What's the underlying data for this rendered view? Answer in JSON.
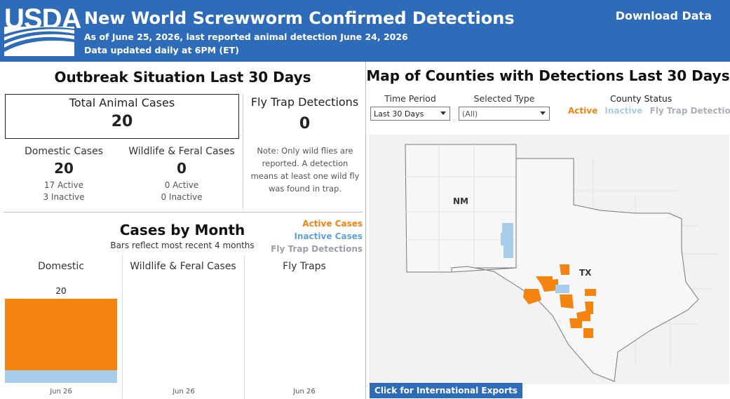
{
  "header": {
    "logo_text": "USDA",
    "title": "New World Screwworm Confirmed Detections",
    "subtitle_1": "As of June 25, 2026, last reported animal detection June 24, 2026",
    "subtitle_2": "Data updated daily at 6PM (ET)",
    "download_label": "Download Data"
  },
  "outbreak": {
    "title": "Outbreak Situation Last 30 Days",
    "total_label": "Total Animal Cases",
    "total_value": "20",
    "domestic": {
      "label": "Domestic Cases",
      "value": "20",
      "active": "17 Active",
      "inactive": "3 Inactive"
    },
    "wildlife": {
      "label": "Wildlife & Feral Cases",
      "value": "0",
      "active": "0 Active",
      "inactive": "0 Inactive"
    },
    "fly": {
      "label": "Fly Trap Detections",
      "value": "0",
      "note": "Note: Only wild flies are reported. A detection means at least one wild fly was found in trap."
    }
  },
  "cases_by_month": {
    "title": "Cases by Month",
    "note": "Bars reflect most recent 4 months",
    "legend": [
      "Active Cases",
      "Inactive Cases",
      "Fly Trap Detections"
    ],
    "columns": [
      {
        "title": "Domestic",
        "tick": "Jun 26"
      },
      {
        "title": "Wildlife & Feral Cases",
        "tick": "Jun 26"
      },
      {
        "title": "Fly Traps",
        "tick": "Jun 26"
      }
    ],
    "bar_total_label": "20",
    "colors": {
      "active": "#f5830f",
      "inactive": "#a7cbea",
      "fly": "#9aa0a8"
    }
  },
  "chart_data": {
    "type": "bar",
    "categories": [
      "Jun 26"
    ],
    "series": [
      {
        "name": "Active Cases",
        "values": [
          17
        ]
      },
      {
        "name": "Inactive Cases",
        "values": [
          3
        ]
      }
    ],
    "title": "Cases by Month",
    "ylim": [
      0,
      20
    ]
  },
  "map": {
    "title": "Map of Counties with Detections Last 30 Days",
    "time_period_label": "Time Period",
    "time_period_value": "Last 30 Days",
    "type_label": "Selected Type",
    "type_value": "(All)",
    "status_title": "County Status",
    "status_items": [
      {
        "label": "Active",
        "color": "#f5830f"
      },
      {
        "label": "Inactive",
        "color": "#a7cbea"
      },
      {
        "label": "Fly Trap Detection",
        "color": "#a9b0b8"
      }
    ],
    "state_nm": "NM",
    "state_tx": "TX",
    "intl_button": "Click for International Exports"
  }
}
